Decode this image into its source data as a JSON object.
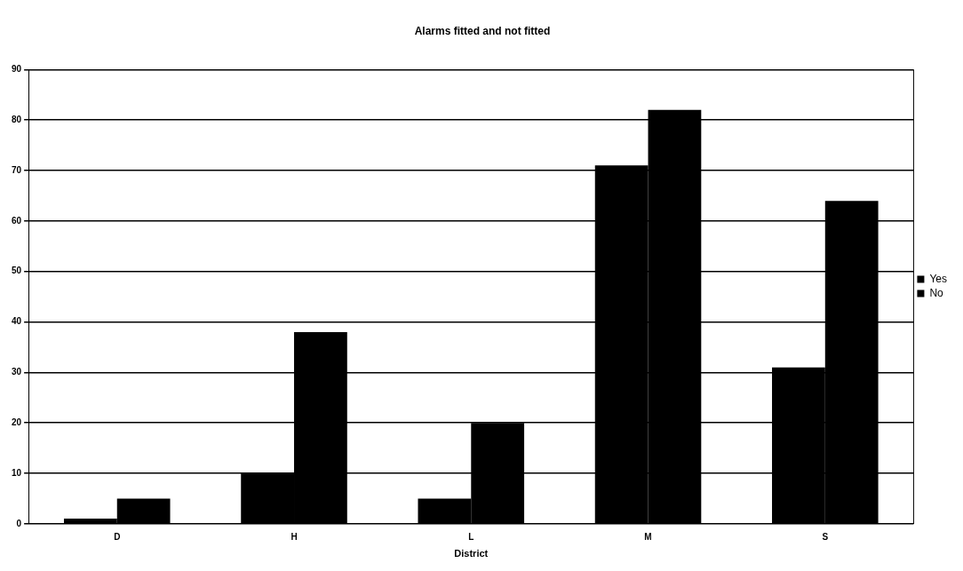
{
  "chart_data": {
    "type": "bar",
    "title": "Alarms fitted and not fitted",
    "xlabel": "District",
    "categories": [
      "D",
      "H",
      "L",
      "M",
      "S"
    ],
    "series": [
      {
        "name": "Yes",
        "color": "#000000",
        "values": [
          1,
          10,
          5,
          71,
          31
        ]
      },
      {
        "name": "No",
        "color": "#000000",
        "values": [
          5,
          38,
          20,
          82,
          64
        ]
      }
    ],
    "ylim": [
      0,
      90
    ],
    "yticks": [
      0,
      10,
      20,
      30,
      40,
      50,
      60,
      70,
      80,
      90
    ],
    "grid": "y",
    "legend": "right"
  }
}
